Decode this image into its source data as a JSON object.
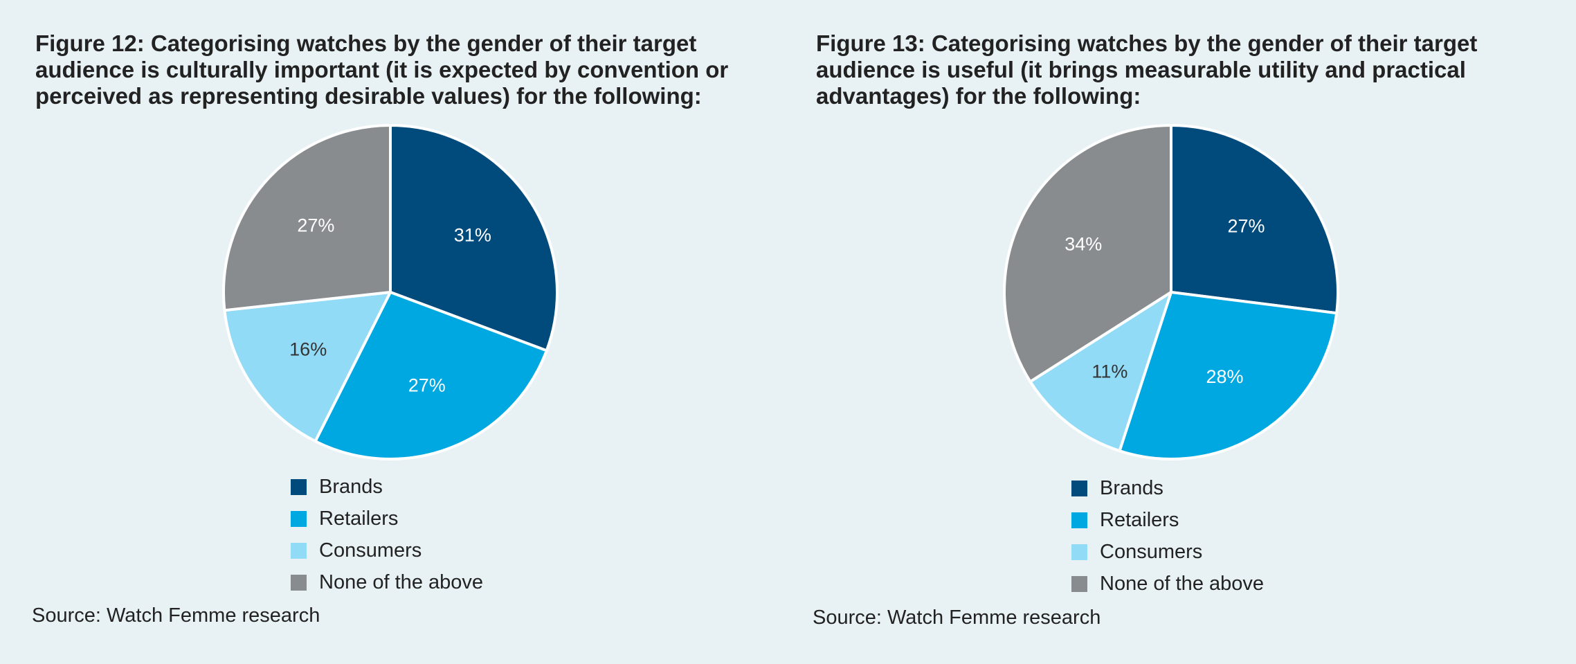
{
  "colors": {
    "brands": "#004a7c",
    "retailers": "#00a8e1",
    "consumers": "#92dbf7",
    "none": "#898c8e",
    "background": "#e8f2f5"
  },
  "chart_data": [
    {
      "type": "pie",
      "title": "Figure 12: Categorising watches by the gender of their target audience is culturally important (it is expected by convention or perceived as representing desirable values) for the following:",
      "categories": [
        "Brands",
        "Retailers",
        "Consumers",
        "None of the above"
      ],
      "values": [
        31,
        27,
        16,
        27
      ],
      "labels": [
        "31%",
        "27%",
        "16%",
        "27%"
      ],
      "colors": [
        "#004a7c",
        "#00a8e1",
        "#92dbf7",
        "#898c8e"
      ],
      "label_colors": [
        "#ffffff",
        "#ffffff",
        "#333333",
        "#ffffff"
      ],
      "start": "12 o'clock, clockwise",
      "legend": "bottom",
      "source": "Source: Watch Femme research"
    },
    {
      "type": "pie",
      "title": "Figure 13: Categorising watches by the gender of their target audience is useful (it brings measurable utility and practical advantages) for the following:",
      "categories": [
        "Brands",
        "Retailers",
        "Consumers",
        "None of the above"
      ],
      "values": [
        27,
        28,
        11,
        34
      ],
      "labels": [
        "27%",
        "28%",
        "11%",
        "34%"
      ],
      "colors": [
        "#004a7c",
        "#00a8e1",
        "#92dbf7",
        "#898c8e"
      ],
      "label_colors": [
        "#ffffff",
        "#ffffff",
        "#333333",
        "#ffffff"
      ],
      "start": "12 o'clock, clockwise",
      "legend": "bottom",
      "source": "Source: Watch Femme research"
    }
  ]
}
